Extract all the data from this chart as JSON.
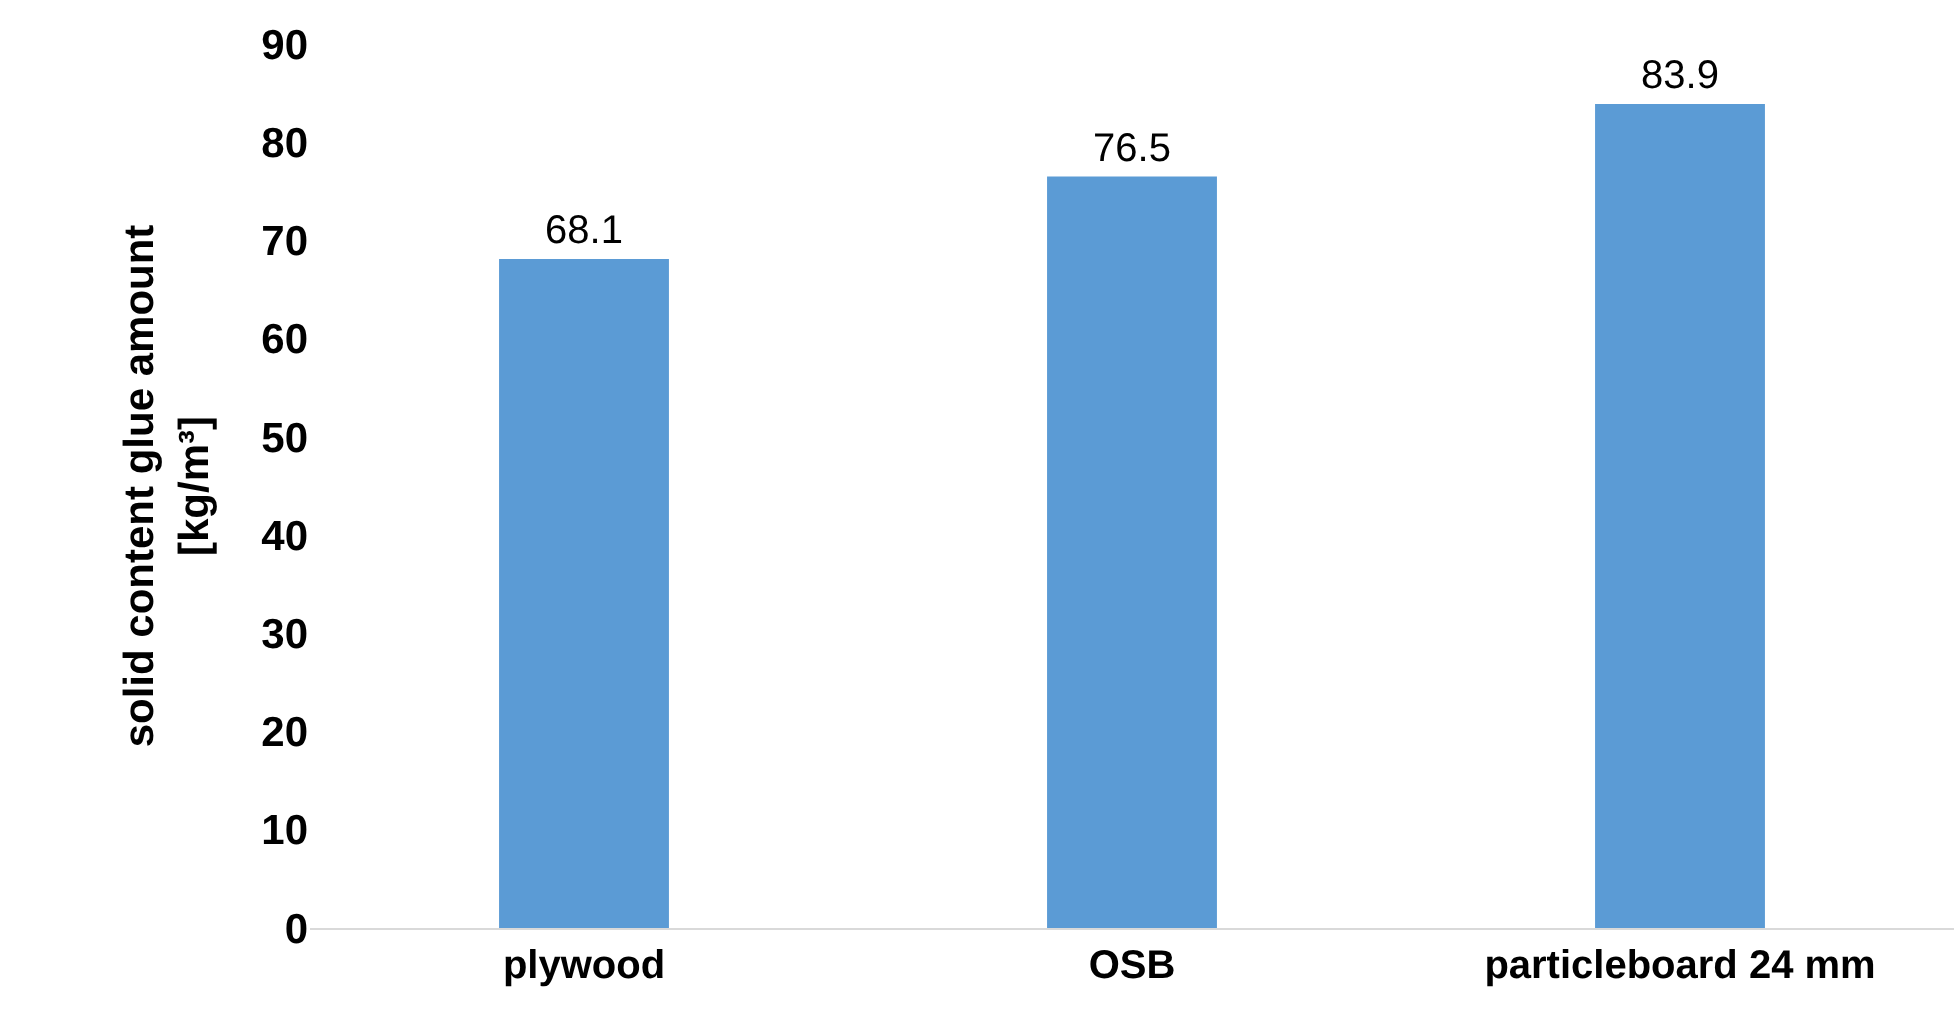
{
  "chart_data": {
    "type": "bar",
    "ylabel": "solid content glue amount\n[kg/m³]",
    "categories": [
      "plywood",
      "OSB",
      "particleboard 24 mm"
    ],
    "values": [
      68.1,
      76.5,
      83.9
    ],
    "color": "#5b9bd5",
    "ylim": [
      0,
      90
    ],
    "yticks": [
      0,
      10,
      20,
      30,
      40,
      50,
      60,
      70,
      80,
      90
    ],
    "data_labels": true,
    "grid": false,
    "legend": false
  }
}
